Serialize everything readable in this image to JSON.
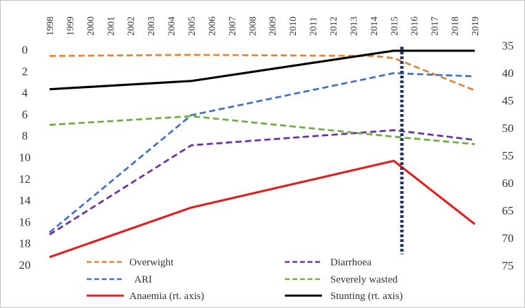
{
  "chart_data": {
    "type": "line",
    "x": [
      "1998",
      "1999",
      "2000",
      "2001",
      "2002",
      "2003",
      "2004",
      "2005",
      "2006",
      "2007",
      "2008",
      "2009",
      "2010",
      "2011",
      "2012",
      "2013",
      "2014",
      "2015",
      "2016",
      "2017",
      "2018",
      "2019"
    ],
    "left_axis": {
      "ticks": [
        0,
        2,
        4,
        6,
        8,
        10,
        12,
        14,
        16,
        18,
        20
      ],
      "range": [
        0,
        20
      ],
      "inverted": true
    },
    "right_axis": {
      "ticks": [
        35,
        40,
        45,
        50,
        55,
        60,
        65,
        70,
        75
      ],
      "range": [
        34.4,
        75
      ],
      "inverted": true
    },
    "series": [
      {
        "name": "Overwight",
        "axis": "left",
        "color": "#e0853b",
        "dash": "dashed",
        "points": [
          [
            1998,
            0.6
          ],
          [
            2005,
            0.5
          ],
          [
            2014,
            0.6
          ],
          [
            2015,
            0.8
          ],
          [
            2019,
            3.8
          ]
        ]
      },
      {
        "name": "Diarrhoea",
        "axis": "left",
        "color": "#7030a0",
        "dash": "dashed",
        "points": [
          [
            1998,
            17.2
          ],
          [
            2005,
            8.9
          ],
          [
            2015,
            7.5
          ],
          [
            2019,
            8.4
          ]
        ]
      },
      {
        "name": "ARI",
        "axis": "left",
        "color": "#4472c4",
        "dash": "dashed",
        "points": [
          [
            1998,
            17.0
          ],
          [
            2005,
            6.1
          ],
          [
            2015,
            2.2
          ],
          [
            2019,
            2.5
          ]
        ]
      },
      {
        "name": "Severely wasted",
        "axis": "left",
        "color": "#70ad47",
        "dash": "dashed",
        "points": [
          [
            1998,
            7.0
          ],
          [
            2005,
            6.2
          ],
          [
            2015,
            8.1
          ],
          [
            2019,
            8.8
          ]
        ]
      },
      {
        "name": "Anaemia (rt. axis)",
        "axis": "right",
        "color": "#e02020",
        "dash": "solid",
        "points": [
          [
            1998,
            73.5
          ],
          [
            2005,
            64.5
          ],
          [
            2015,
            56.0
          ],
          [
            2019,
            67.5
          ]
        ]
      },
      {
        "name": "Stunting (rt. axis)",
        "axis": "right",
        "color": "#000000",
        "dash": "solid",
        "points": [
          [
            1998,
            43.0
          ],
          [
            2005,
            41.5
          ],
          [
            2015,
            36.0
          ],
          [
            2019,
            36.0
          ]
        ]
      }
    ],
    "marker_line": {
      "x": 2015.4,
      "style": "dotted",
      "color": "#1f3864"
    },
    "legend_position": "bottom",
    "grid": false
  }
}
